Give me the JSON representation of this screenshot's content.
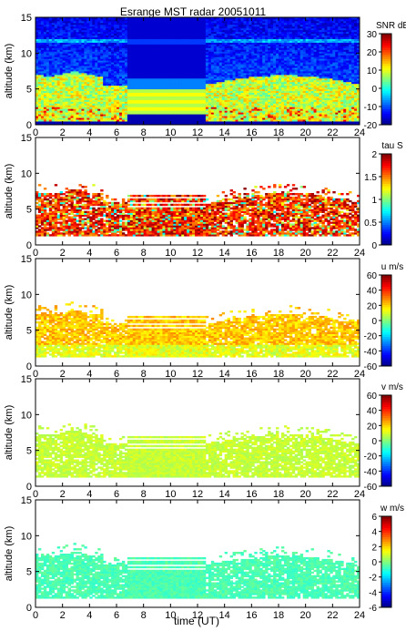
{
  "title": "Esrange MST radar 20051011",
  "xlabel": "time (UT)",
  "colors": {
    "background": "#ffffff",
    "axis": "#000000",
    "colormap": [
      "#00007f",
      "#0000ff",
      "#007fff",
      "#00ffff",
      "#7fff7f",
      "#ffff00",
      "#ff7f00",
      "#ff0000",
      "#7f0000"
    ]
  },
  "chart_data": [
    {
      "type": "heatmap",
      "name": "SNR",
      "xlabel": "",
      "ylabel": "altitude (km)",
      "xlim": [
        0,
        24
      ],
      "ylim": [
        0,
        15
      ],
      "xticks": [
        0,
        2,
        4,
        6,
        8,
        10,
        12,
        14,
        16,
        18,
        20,
        22,
        24
      ],
      "yticks": [
        0,
        5,
        10,
        15
      ],
      "colorbar": {
        "label": "SNR dB",
        "range": [
          -20,
          30
        ],
        "ticks": [
          -20,
          -10,
          0,
          10,
          20,
          30
        ]
      },
      "gap": [
        6.8,
        12.5
      ],
      "coverage_top_km": 15,
      "clutter_top_km": [
        7.0,
        5.5,
        4.5
      ],
      "pattern": "snr"
    },
    {
      "type": "heatmap",
      "name": "tau",
      "xlabel": "",
      "ylabel": "altitude (km)",
      "xlim": [
        0,
        24
      ],
      "ylim": [
        0,
        15
      ],
      "xticks": [
        0,
        2,
        4,
        6,
        8,
        10,
        12,
        14,
        16,
        18,
        20,
        22,
        24
      ],
      "yticks": [
        0,
        5,
        10,
        15
      ],
      "colorbar": {
        "label": "tau S",
        "range": [
          0,
          2
        ],
        "ticks": [
          0,
          0.5,
          1,
          1.5,
          2
        ]
      },
      "gap": [
        6.8,
        12.5
      ],
      "clutter_top_km": [
        7.0,
        5.5,
        4.5
      ],
      "pattern": "tau"
    },
    {
      "type": "heatmap",
      "name": "u",
      "xlabel": "",
      "ylabel": "altitude (km)",
      "xlim": [
        0,
        24
      ],
      "ylim": [
        0,
        15
      ],
      "xticks": [
        0,
        2,
        4,
        6,
        8,
        10,
        12,
        14,
        16,
        18,
        20,
        22,
        24
      ],
      "yticks": [
        0,
        5,
        10,
        15
      ],
      "colorbar": {
        "label": "u m/s",
        "range": [
          -60,
          60
        ],
        "ticks": [
          -60,
          -40,
          -20,
          0,
          20,
          40,
          60
        ]
      },
      "gap": [
        6.8,
        12.5
      ],
      "clutter_top_km": [
        7.0,
        5.5,
        4.5
      ],
      "pattern": "u"
    },
    {
      "type": "heatmap",
      "name": "v",
      "xlabel": "",
      "ylabel": "altitude (km)",
      "xlim": [
        0,
        24
      ],
      "ylim": [
        0,
        15
      ],
      "xticks": [
        0,
        2,
        4,
        6,
        8,
        10,
        12,
        14,
        16,
        18,
        20,
        22,
        24
      ],
      "yticks": [
        0,
        5,
        10,
        15
      ],
      "colorbar": {
        "label": "v m/s",
        "range": [
          -60,
          60
        ],
        "ticks": [
          -60,
          -40,
          -20,
          0,
          20,
          40,
          60
        ]
      },
      "gap": [
        6.8,
        12.5
      ],
      "clutter_top_km": [
        7.0,
        5.5,
        4.5
      ],
      "pattern": "v"
    },
    {
      "type": "heatmap",
      "name": "w",
      "xlabel": "time (UT)",
      "ylabel": "altitude (km)",
      "xlim": [
        0,
        24
      ],
      "ylim": [
        0,
        15
      ],
      "xticks": [
        0,
        2,
        4,
        6,
        8,
        10,
        12,
        14,
        16,
        18,
        20,
        22,
        24
      ],
      "yticks": [
        0,
        5,
        10,
        15
      ],
      "colorbar": {
        "label": "w m/s",
        "range": [
          -6,
          6
        ],
        "ticks": [
          -6,
          -4,
          -2,
          0,
          2,
          4,
          6
        ]
      },
      "gap": [
        6.8,
        12.5
      ],
      "clutter_top_km": [
        7.0,
        5.5,
        4.5
      ],
      "pattern": "w"
    }
  ]
}
